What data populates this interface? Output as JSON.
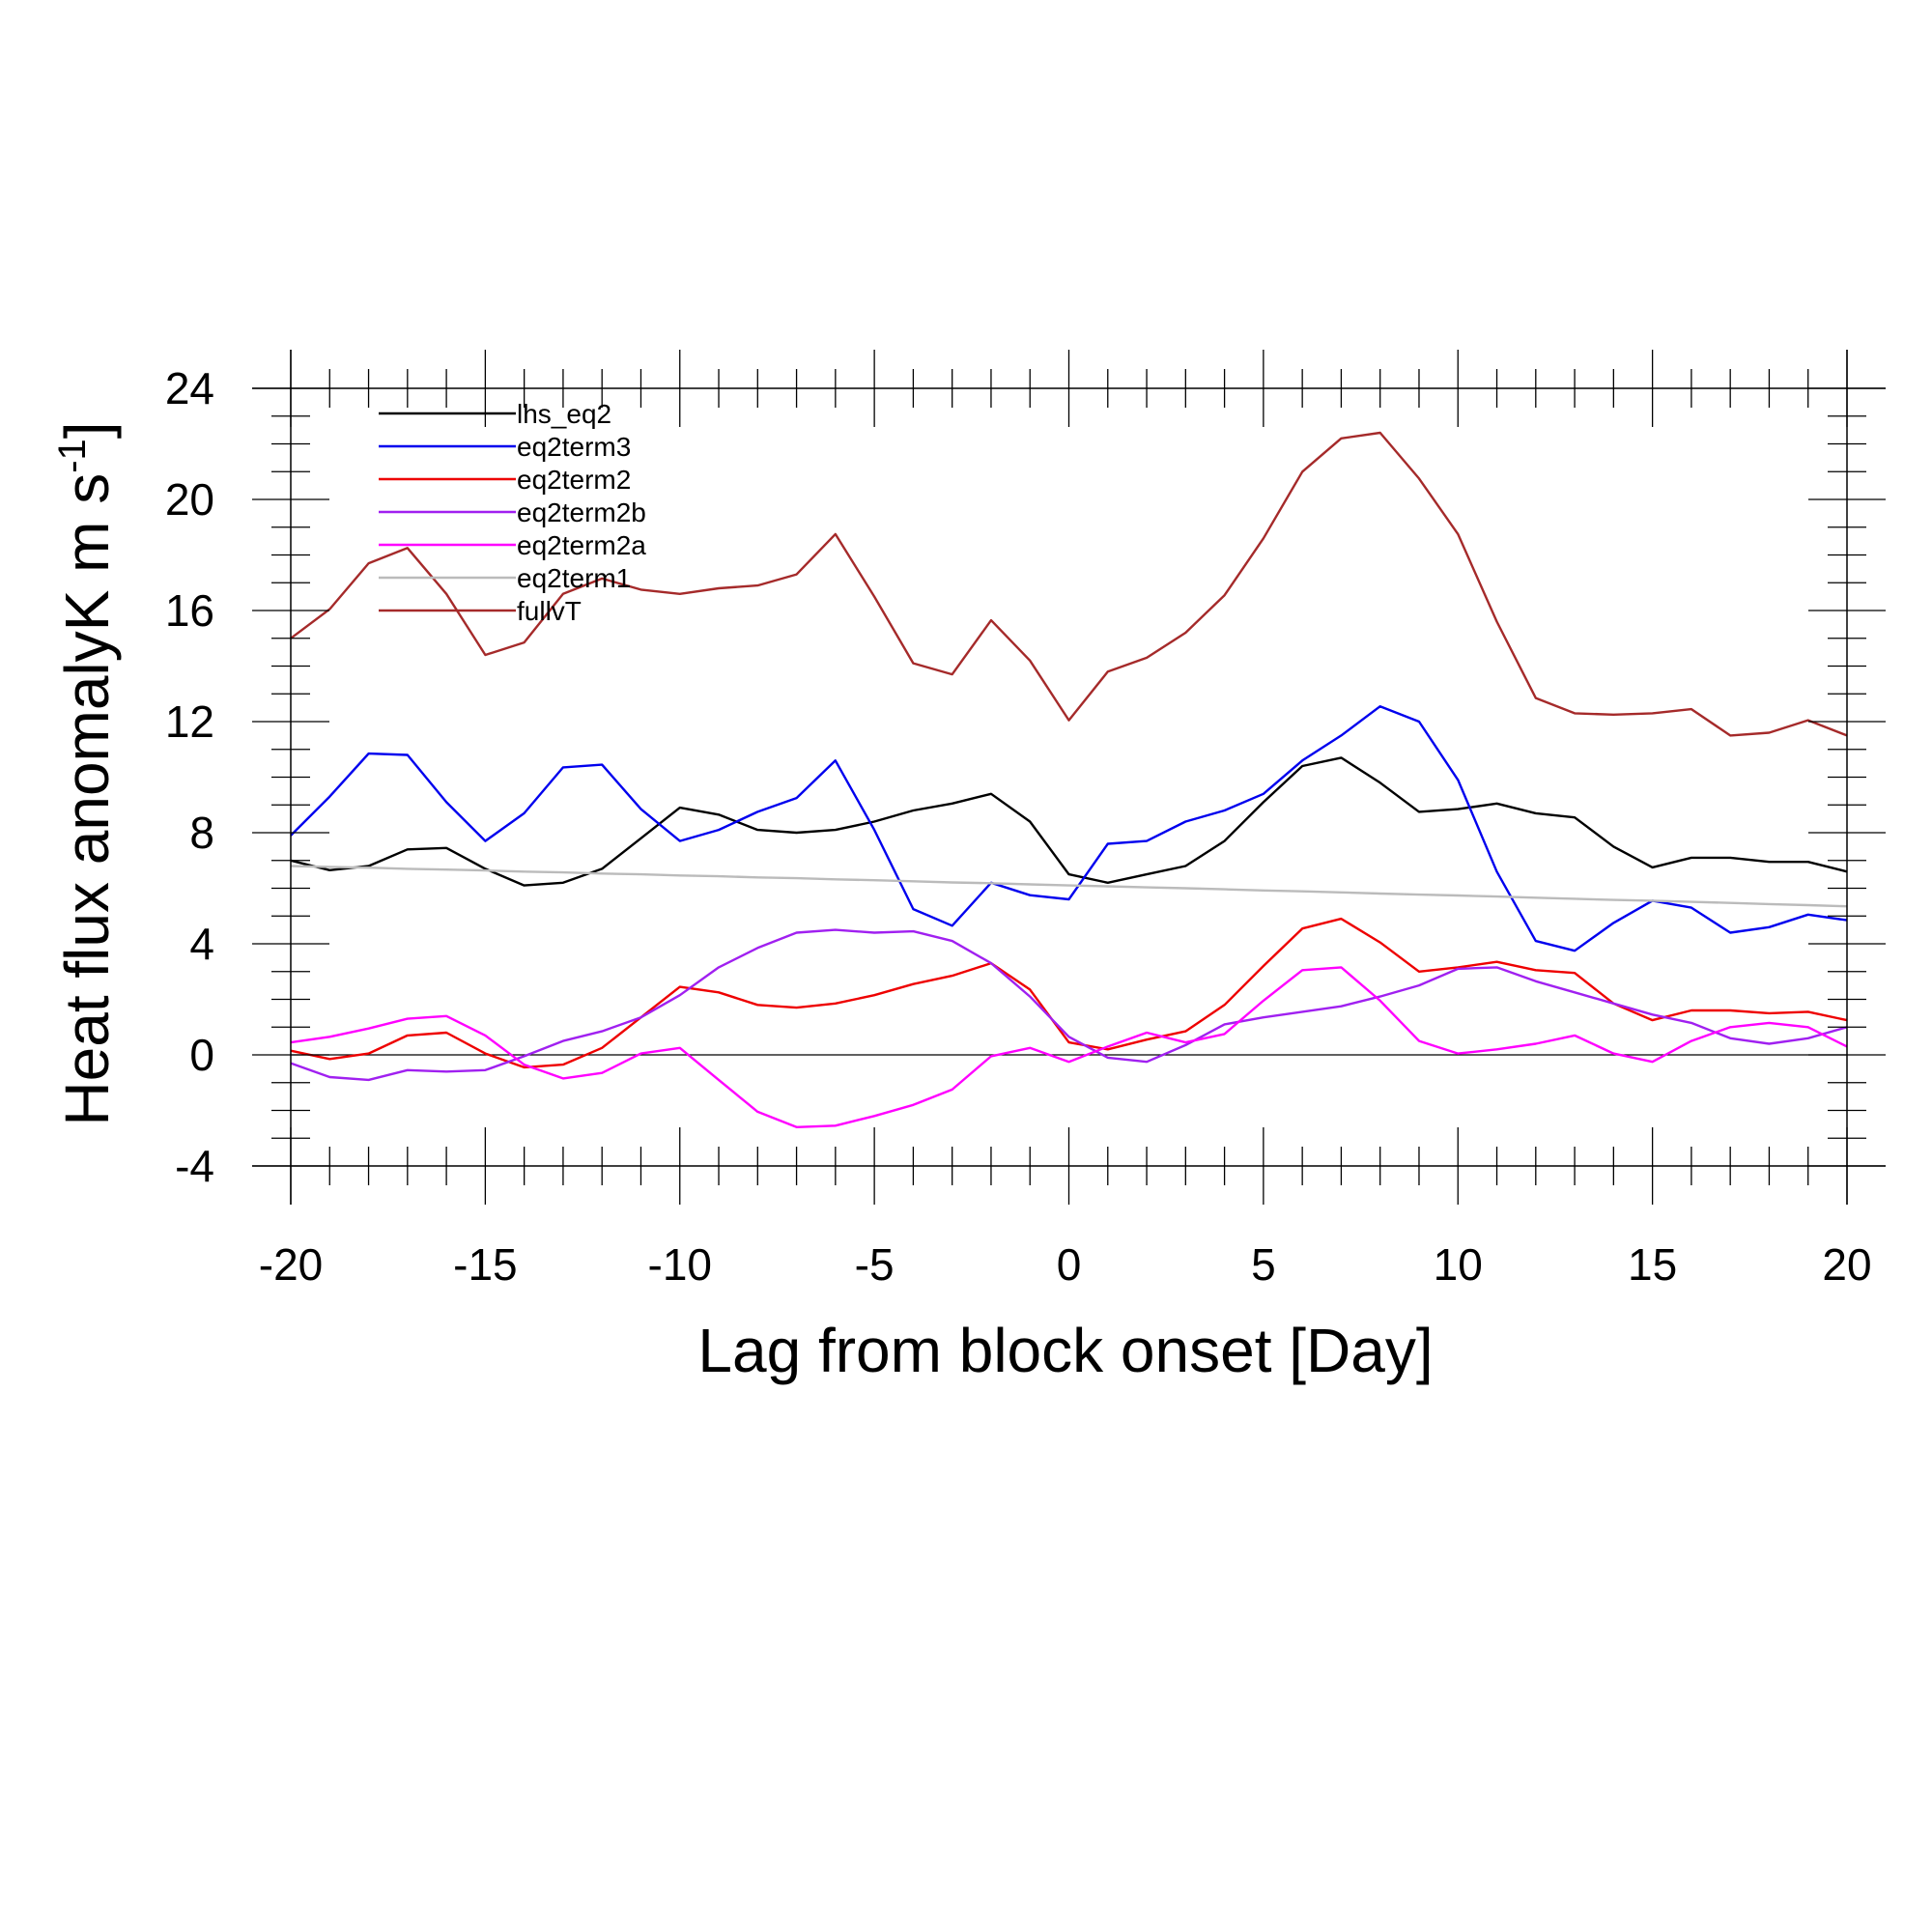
{
  "chart_data": {
    "type": "line",
    "xlabel": "Lag from block onset [Day]",
    "ylabel_main": "Heat flux anomalyK m s",
    "ylabel_sup": "-1",
    "ylabel_close": "]",
    "xlim": [
      -20,
      20
    ],
    "ylim": [
      -4,
      24
    ],
    "x_ticks": [
      -20,
      -15,
      -10,
      -5,
      0,
      5,
      10,
      15,
      20
    ],
    "x_tick_labels": [
      "-20",
      "-15",
      "-10",
      "-5",
      "0",
      "5",
      "10",
      "15",
      "20"
    ],
    "y_ticks": [
      -4,
      0,
      4,
      8,
      12,
      16,
      20,
      24
    ],
    "y_tick_labels": [
      "-4",
      "0",
      "4",
      "8",
      "12",
      "16",
      "20",
      "24"
    ],
    "zero_line": true,
    "grid": false,
    "legend_position": "top-left",
    "series": [
      {
        "name": "lhs_eq2",
        "color": "#000000",
        "values": [
          7.0,
          6.65,
          6.8,
          7.4,
          7.45,
          6.7,
          6.1,
          6.2,
          6.7,
          7.8,
          8.9,
          8.65,
          8.1,
          8.0,
          8.1,
          8.4,
          8.8,
          9.05,
          9.4,
          8.4,
          6.5,
          6.2,
          6.5,
          6.8,
          7.7,
          9.1,
          10.4,
          10.7,
          9.8,
          8.75,
          8.85,
          9.05,
          8.7,
          8.55,
          7.5,
          6.75,
          7.1,
          7.1,
          6.95,
          6.95,
          6.6
        ]
      },
      {
        "name": "eq2term3",
        "color": "#0000ee",
        "values": [
          7.9,
          9.3,
          10.85,
          10.8,
          9.1,
          7.7,
          8.7,
          10.35,
          10.45,
          8.85,
          7.7,
          8.1,
          8.75,
          9.25,
          10.6,
          8.1,
          5.25,
          4.65,
          6.2,
          5.75,
          5.6,
          7.6,
          7.7,
          8.4,
          8.8,
          9.4,
          10.6,
          11.5,
          12.55,
          12.0,
          9.9,
          6.6,
          4.1,
          3.75,
          4.75,
          5.55,
          5.3,
          4.4,
          4.6,
          5.05,
          4.85
        ]
      },
      {
        "name": "eq2term2",
        "color": "#ee0000",
        "values": [
          0.15,
          -0.15,
          0.05,
          0.7,
          0.8,
          0.05,
          -0.45,
          -0.35,
          0.25,
          1.35,
          2.45,
          2.25,
          1.8,
          1.7,
          1.85,
          2.15,
          2.55,
          2.85,
          3.3,
          2.35,
          0.45,
          0.2,
          0.55,
          0.85,
          1.8,
          3.2,
          4.55,
          4.9,
          4.05,
          3.0,
          3.15,
          3.35,
          3.05,
          2.95,
          1.85,
          1.25,
          1.6,
          1.6,
          1.5,
          1.55,
          1.25
        ]
      },
      {
        "name": "eq2term2b",
        "color": "#a020f0",
        "values": [
          -0.3,
          -0.8,
          -0.9,
          -0.55,
          -0.6,
          -0.55,
          -0.05,
          0.5,
          0.85,
          1.35,
          2.15,
          3.15,
          3.85,
          4.4,
          4.5,
          4.4,
          4.45,
          4.1,
          3.3,
          2.1,
          0.65,
          -0.1,
          -0.25,
          0.35,
          1.1,
          1.35,
          1.55,
          1.75,
          2.1,
          2.5,
          3.1,
          3.15,
          2.65,
          2.25,
          1.85,
          1.45,
          1.15,
          0.6,
          0.4,
          0.6,
          1.0
        ]
      },
      {
        "name": "eq2term2a",
        "color": "#ff00ff",
        "values": [
          0.45,
          0.65,
          0.95,
          1.3,
          1.4,
          0.7,
          -0.35,
          -0.85,
          -0.65,
          0.05,
          0.25,
          -0.9,
          -2.05,
          -2.6,
          -2.55,
          -2.2,
          -1.8,
          -1.25,
          -0.05,
          0.25,
          -0.25,
          0.3,
          0.8,
          0.45,
          0.75,
          1.95,
          3.05,
          3.15,
          1.95,
          0.5,
          0.05,
          0.2,
          0.4,
          0.7,
          0.05,
          -0.25,
          0.5,
          1.0,
          1.15,
          1.0,
          0.3
        ]
      },
      {
        "name": "eq2term1",
        "color": "#bbbbbb",
        "values": [
          6.8,
          6.77,
          6.74,
          6.7,
          6.67,
          6.64,
          6.6,
          6.57,
          6.53,
          6.5,
          6.46,
          6.43,
          6.39,
          6.36,
          6.32,
          6.29,
          6.25,
          6.21,
          6.18,
          6.14,
          6.1,
          6.07,
          6.03,
          6.0,
          5.96,
          5.92,
          5.89,
          5.85,
          5.81,
          5.77,
          5.74,
          5.7,
          5.66,
          5.62,
          5.58,
          5.55,
          5.51,
          5.47,
          5.43,
          5.39,
          5.35
        ]
      },
      {
        "name": "fullvT",
        "color": "#a52a2a",
        "values": [
          15.0,
          16.05,
          17.7,
          18.25,
          16.6,
          14.4,
          14.85,
          16.6,
          17.15,
          16.75,
          16.6,
          16.8,
          16.9,
          17.3,
          18.75,
          16.5,
          14.1,
          13.7,
          15.65,
          14.2,
          12.05,
          13.8,
          14.3,
          15.2,
          16.55,
          18.6,
          21.0,
          22.2,
          22.4,
          20.75,
          18.75,
          15.6,
          12.85,
          12.3,
          12.25,
          12.3,
          12.45,
          11.5,
          11.6,
          12.05,
          11.5
        ]
      }
    ]
  }
}
